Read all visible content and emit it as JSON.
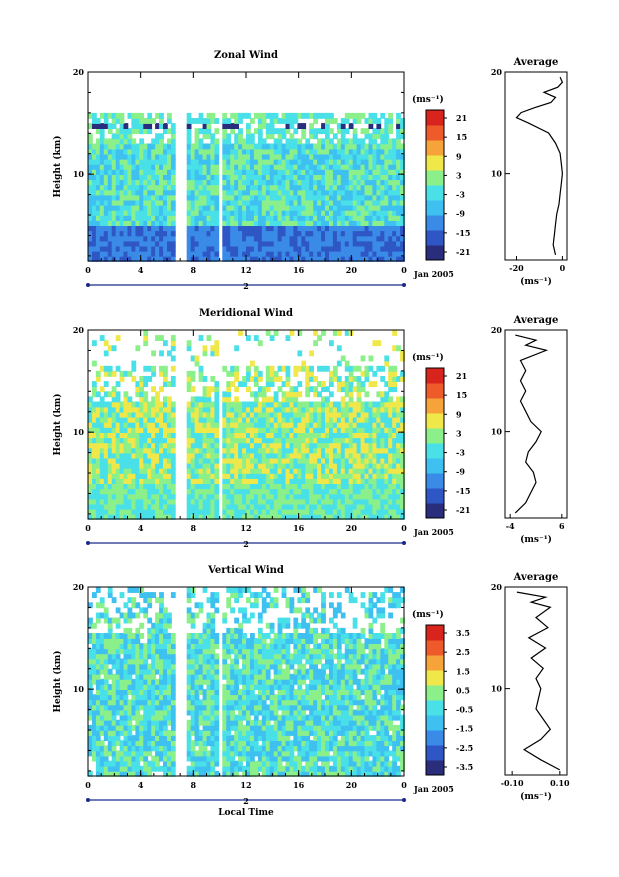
{
  "chart_data": [
    {
      "type": "heatmap",
      "title": "Zonal Wind",
      "ylabel": "Height (km)",
      "units": "(ms⁻¹)",
      "x_ticks": [
        "0",
        "4",
        "8",
        "12",
        "16",
        "20",
        "0"
      ],
      "y_ticks": [
        "10",
        "20"
      ],
      "xlim": [
        0,
        24
      ],
      "ylim": [
        1.5,
        20
      ],
      "day_label": "2",
      "date_label": "Jan 2005",
      "colorbar_ticks": [
        "21",
        "15",
        "9",
        "3",
        "-3",
        "-9",
        "-15",
        "-21"
      ],
      "data_gaps_hours": [
        [
          6.5,
          7.3
        ],
        [
          9.7,
          10.2
        ]
      ],
      "profile": {
        "title": "Average",
        "xlabel": "(ms⁻¹)",
        "x_ticks": [
          "-20",
          "0"
        ],
        "xlim": [
          -25,
          2
        ],
        "y": [
          2,
          3,
          4,
          5,
          6,
          7,
          8,
          9,
          10,
          11,
          12,
          13,
          14,
          15,
          15.5,
          16,
          16.5,
          17,
          17.5,
          18,
          18.5,
          19,
          19.5
        ],
        "x": [
          -3,
          -4,
          -3.5,
          -3,
          -2.5,
          -1.5,
          -1,
          -0.5,
          0,
          -0.5,
          -1,
          -3,
          -6,
          -15,
          -20,
          -18,
          -12,
          -5,
          -3,
          -8,
          -2,
          0,
          -1
        ]
      }
    },
    {
      "type": "heatmap",
      "title": "Meridional Wind",
      "ylabel": "Height (km)",
      "units": "(ms⁻¹)",
      "x_ticks": [
        "0",
        "4",
        "8",
        "12",
        "16",
        "20",
        "0"
      ],
      "y_ticks": [
        "10",
        "20"
      ],
      "xlim": [
        0,
        24
      ],
      "ylim": [
        1.5,
        20
      ],
      "day_label": "2",
      "date_label": "Jan 2005",
      "colorbar_ticks": [
        "21",
        "15",
        "9",
        "3",
        "-3",
        "-9",
        "-15",
        "-21"
      ],
      "data_gaps_hours": [
        [
          6.5,
          7.3
        ],
        [
          9.7,
          10.2
        ]
      ],
      "profile": {
        "title": "Average",
        "xlabel": "(ms⁻¹)",
        "x_ticks": [
          "-4",
          "6"
        ],
        "xlim": [
          -5,
          7
        ],
        "y": [
          2,
          3,
          4,
          5,
          6,
          7,
          8,
          9,
          10,
          11,
          12,
          13,
          14,
          15,
          16,
          17,
          18,
          18.5,
          19,
          19.5
        ],
        "x": [
          -3,
          -1,
          0,
          1,
          0.5,
          -1,
          -0.5,
          1,
          2,
          0,
          -1,
          -2,
          -1,
          -2,
          -1,
          -2,
          3,
          -1,
          1,
          -3
        ]
      }
    },
    {
      "type": "heatmap",
      "title": "Vertical Wind",
      "ylabel": "Height (km)",
      "xlabel": "Local Time",
      "units": "(ms⁻¹)",
      "x_ticks": [
        "0",
        "4",
        "8",
        "12",
        "16",
        "20",
        "0"
      ],
      "y_ticks": [
        "10",
        "20"
      ],
      "xlim": [
        0,
        24
      ],
      "ylim": [
        1.5,
        20
      ],
      "day_label": "2",
      "date_label": "Jan 2005",
      "colorbar_ticks": [
        "3.5",
        "2.5",
        "1.5",
        "0.5",
        "-0.5",
        "-1.5",
        "-2.5",
        "-3.5"
      ],
      "data_gaps_hours": [
        [
          6.5,
          7.3
        ],
        [
          9.7,
          10.2
        ]
      ],
      "profile": {
        "title": "Average",
        "xlabel": "(ms⁻¹)",
        "x_ticks": [
          "-0.10",
          "0.10"
        ],
        "xlim": [
          -0.13,
          0.13
        ],
        "y": [
          2,
          3,
          4,
          5,
          6,
          7,
          8,
          9,
          10,
          11,
          12,
          13,
          14,
          15,
          16,
          17,
          18,
          18.5,
          19,
          19.5
        ],
        "x": [
          0.1,
          0.02,
          -0.05,
          0.02,
          0.06,
          0.03,
          0.0,
          0.01,
          0.02,
          0.0,
          0.03,
          -0.02,
          0.04,
          -0.03,
          0.05,
          0.0,
          0.06,
          -0.02,
          0.04,
          -0.08
        ]
      }
    }
  ],
  "colors": {
    "colorbar": [
      "#2a2d7c",
      "#2f56c5",
      "#3a8be8",
      "#3ec0f0",
      "#49e0e8",
      "#8cf08a",
      "#f0e84a",
      "#f6a33a",
      "#ee5a2a",
      "#d8241c"
    ],
    "missing": "#ffffff"
  }
}
